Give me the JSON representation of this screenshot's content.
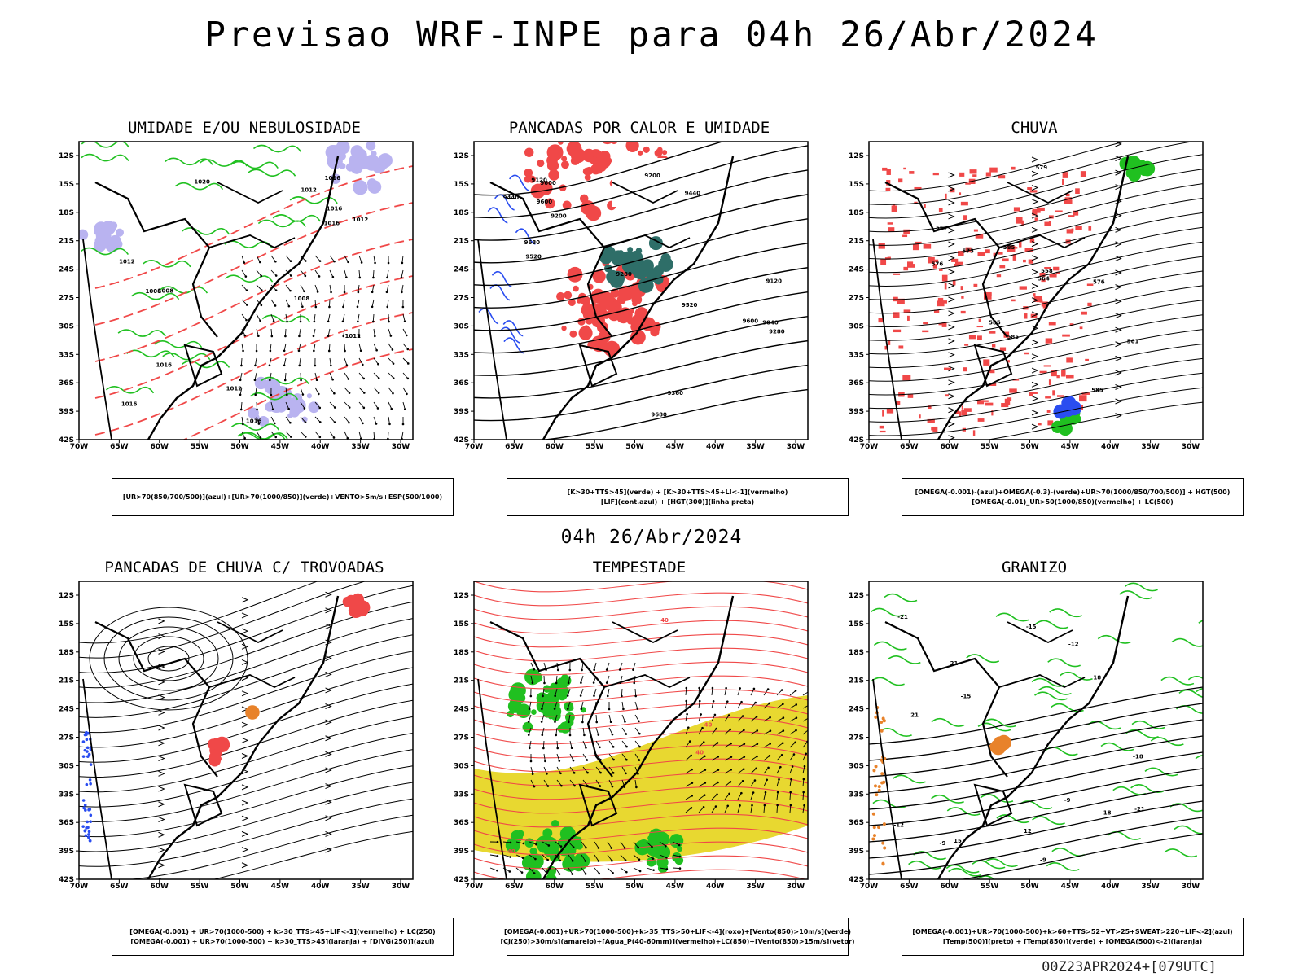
{
  "header": {
    "title": "Previsao WRF-INPE  para 04h 26/Abr/2024",
    "subtitle": "04h 26/Abr/2024",
    "footer": "00Z23APR2024+[079UTC]"
  },
  "axes": {
    "lat_labels": [
      "12S",
      "15S",
      "18S",
      "21S",
      "24S",
      "27S",
      "30S",
      "33S",
      "36S",
      "39S",
      "42S"
    ],
    "lon_labels": [
      "70W",
      "65W",
      "60W",
      "55W",
      "50W",
      "45W",
      "40W",
      "35W",
      "30W"
    ]
  },
  "panels": [
    {
      "title": "UMIDADE E/OU NEBULOSIDADE",
      "legend": [
        "[UR>70(850/700/500)](azul)+[UR>70(1000/850)](verde)+VENTO>5m/s+ESP(500/1000)"
      ],
      "layers": [
        "lavender-humidity",
        "green-contours",
        "red-dashed",
        "wind-vectors"
      ],
      "contour_labels": [
        "1012",
        "1012",
        "1012",
        "1016",
        "1016",
        "1016",
        "1016",
        "1012",
        "1020",
        "1016",
        "1012",
        "1008",
        "1008",
        "1008",
        "1016"
      ]
    },
    {
      "title": "PANCADAS POR CALOR E UMIDADE",
      "legend": [
        "[K>30+TTS>45](verde) + [K>30+TTS>45+LI<-1](vermelho)",
        "[LIF](cont.azul) + [HGT(300)](linha preta)"
      ],
      "layers": [
        "red-fill",
        "teal-fill",
        "blue-contours",
        "black-contours"
      ],
      "contour_labels": [
        "9680",
        "9600",
        "9680",
        "9600",
        "9600",
        "9520",
        "9520",
        "9440",
        "9440",
        "9360",
        "9280",
        "9280",
        "9200",
        "9200",
        "9120",
        "9120",
        "9040"
      ]
    },
    {
      "title": "CHUVA",
      "legend": [
        "[OMEGA(-0.001)-(azul)+OMEGA(-0.3)-(verde)+UR>70(1000/850/700/500)] + HGT(500)",
        "[OMEGA(-0.01)_UR>50(1000/850)(vermelho) + LC(500)"
      ],
      "layers": [
        "red-speckle",
        "green-blue-cells",
        "streamlines"
      ],
      "contour_labels": [
        "585",
        "585",
        "585",
        "585",
        "579",
        "576",
        "573",
        "576",
        "567",
        "564",
        "561",
        "558"
      ]
    },
    {
      "title": "PANCADAS DE CHUVA C/ TROVOADAS",
      "legend": [
        "[OMEGA(-0.001) + UR>70(1000-500) + k>30_TTS>45+LIF<-1](vermelho) + LC(250)",
        "[OMEGA(-0.001) + UR>70(1000-500) + k>30_TTS>45](laranja) + [DIVG(250)](azul)"
      ],
      "layers": [
        "streamlines-250",
        "red-patches",
        "orange-patches",
        "blue-patches"
      ],
      "contour_labels": []
    },
    {
      "title": "TEMPESTADE",
      "legend": [
        "[OMEGA(-0.001)+UR>70(1000-500)+k>35_TTS>50+LIF<-4](roxo)+[Vento(850)>10m/s](verde)",
        "[CJ(250)>30m/s](amarelo)+[Agua_P(40-60mm)](vermelho)+LC(850)+[Vento(850)>15m/s](vetor)"
      ],
      "layers": [
        "yellow-jet",
        "green-wind",
        "red-streamlines",
        "wind-vectors"
      ],
      "contour_labels": [
        "40",
        "40",
        "40",
        "40"
      ]
    },
    {
      "title": "GRANIZO",
      "legend": [
        "[OMEGA(-0.001)+UR>70(1000-500)+k>60+TTS>52+VT>25+SWEAT>220+LIF<-2](azul)",
        "[Temp(500)](preto) + [Temp(850)](verde) + [OMEGA(500)<-2](laranja)"
      ],
      "layers": [
        "green-contours",
        "black-contours",
        "orange-blue-cells"
      ],
      "contour_labels": [
        "-9",
        "-9",
        "-12",
        "-12",
        "-15",
        "-15",
        "-18",
        "-18",
        "-21",
        "-21",
        "-9",
        "12",
        "15",
        "18",
        "21",
        "21"
      ]
    }
  ],
  "colors": {
    "lavender": "#b9b3f0",
    "green": "#20c020",
    "red": "#f04848",
    "teal": "#2e6e68",
    "blue": "#2a4df0",
    "yellow": "#e8d830",
    "orange": "#e8822a",
    "black": "#000000"
  }
}
